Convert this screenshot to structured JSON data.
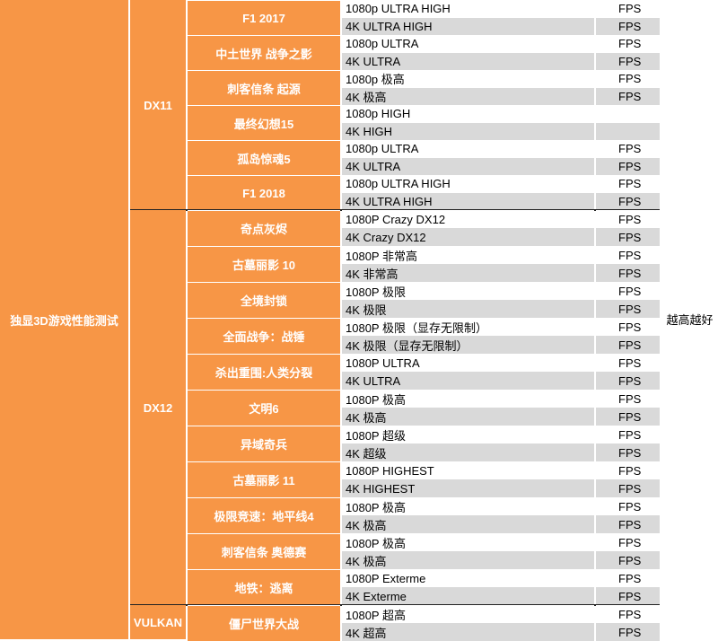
{
  "category": "独显3D游戏性能测试",
  "note": "越高越好",
  "sections": [
    {
      "api": "DX11",
      "games": [
        {
          "name": "F1 2017",
          "rows": [
            {
              "setting": "1080p ULTRA HIGH",
              "unit": "FPS"
            },
            {
              "setting": "4K ULTRA HIGH",
              "unit": "FPS"
            }
          ]
        },
        {
          "name": "中土世界 战争之影",
          "rows": [
            {
              "setting": "1080p ULTRA",
              "unit": "FPS"
            },
            {
              "setting": "4K ULTRA",
              "unit": "FPS"
            }
          ]
        },
        {
          "name": "刺客信条 起源",
          "rows": [
            {
              "setting": "1080p 极高",
              "unit": "FPS"
            },
            {
              "setting": "4K 极高",
              "unit": "FPS"
            }
          ]
        },
        {
          "name": "最终幻想15",
          "rows": [
            {
              "setting": "1080p HIGH",
              "unit": ""
            },
            {
              "setting": "4K HIGH",
              "unit": ""
            }
          ]
        },
        {
          "name": "孤岛惊魂5",
          "rows": [
            {
              "setting": "1080p ULTRA",
              "unit": "FPS"
            },
            {
              "setting": "4K ULTRA",
              "unit": "FPS"
            }
          ]
        },
        {
          "name": "F1 2018",
          "rows": [
            {
              "setting": "1080p ULTRA HIGH",
              "unit": "FPS"
            },
            {
              "setting": "4K ULTRA HIGH",
              "unit": "FPS"
            }
          ]
        }
      ]
    },
    {
      "api": "DX12",
      "games": [
        {
          "name": "奇点灰烬",
          "rows": [
            {
              "setting": "1080P Crazy DX12",
              "unit": "FPS"
            },
            {
              "setting": "4K Crazy DX12",
              "unit": "FPS"
            }
          ]
        },
        {
          "name": "古墓丽影 10",
          "rows": [
            {
              "setting": "1080P 非常高",
              "unit": "FPS"
            },
            {
              "setting": "4K 非常高",
              "unit": "FPS"
            }
          ]
        },
        {
          "name": "全境封锁",
          "rows": [
            {
              "setting": "1080P 极限",
              "unit": "FPS"
            },
            {
              "setting": "4K 极限",
              "unit": "FPS"
            }
          ]
        },
        {
          "name": "全面战争：战锤",
          "rows": [
            {
              "setting": "1080P 极限（显存无限制）",
              "unit": "FPS"
            },
            {
              "setting": "4K 极限（显存无限制）",
              "unit": "FPS"
            }
          ]
        },
        {
          "name": "杀出重围:人类分裂",
          "rows": [
            {
              "setting": "1080P ULTRA",
              "unit": "FPS"
            },
            {
              "setting": "4K ULTRA",
              "unit": "FPS"
            }
          ]
        },
        {
          "name": "文明6",
          "rows": [
            {
              "setting": "1080P 极高",
              "unit": "FPS"
            },
            {
              "setting": "4K 极高",
              "unit": "FPS"
            }
          ]
        },
        {
          "name": "异域奇兵",
          "rows": [
            {
              "setting": "1080P 超级",
              "unit": "FPS"
            },
            {
              "setting": "4K 超级",
              "unit": "FPS"
            }
          ]
        },
        {
          "name": "古墓丽影 11",
          "rows": [
            {
              "setting": "1080P HIGHEST",
              "unit": "FPS"
            },
            {
              "setting": "4K HIGHEST",
              "unit": "FPS"
            }
          ]
        },
        {
          "name": "极限竞速：地平线4",
          "rows": [
            {
              "setting": "1080P 极高",
              "unit": "FPS"
            },
            {
              "setting": "4K 极高",
              "unit": "FPS"
            }
          ]
        },
        {
          "name": "刺客信条 奥德赛",
          "rows": [
            {
              "setting": "1080P 极高",
              "unit": "FPS"
            },
            {
              "setting": "4K 极高",
              "unit": "FPS"
            }
          ]
        },
        {
          "name": "地铁：逃离",
          "rows": [
            {
              "setting": "1080P Exterme",
              "unit": "FPS"
            },
            {
              "setting": "4K Exterme",
              "unit": "FPS"
            }
          ]
        }
      ]
    },
    {
      "api": "VULKAN",
      "games": [
        {
          "name": "僵尸世界大战",
          "rows": [
            {
              "setting": "1080P 超高",
              "unit": "FPS"
            },
            {
              "setting": "4K 超高",
              "unit": "FPS"
            }
          ]
        }
      ]
    }
  ]
}
